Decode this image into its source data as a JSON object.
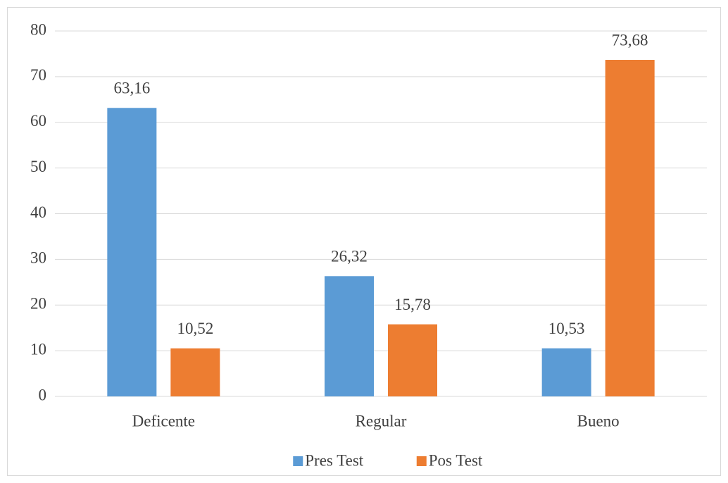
{
  "chart_data": {
    "type": "bar",
    "categories": [
      "Deficente",
      "Regular",
      "Bueno"
    ],
    "series": [
      {
        "name": "Pres Test",
        "color": "#5b9bd5",
        "values": [
          63.16,
          26.32,
          10.53
        ],
        "value_labels": [
          "63,16",
          "26,32",
          "10,53"
        ]
      },
      {
        "name": "Pos Test",
        "color": "#ed7d31",
        "values": [
          10.52,
          15.78,
          73.68
        ],
        "value_labels": [
          "10,52",
          "15,78",
          "73,68"
        ]
      }
    ],
    "ylim": [
      0,
      80
    ],
    "yticks": [
      0,
      10,
      20,
      30,
      40,
      50,
      60,
      70,
      80
    ],
    "grid": true,
    "legend": "bottom"
  }
}
